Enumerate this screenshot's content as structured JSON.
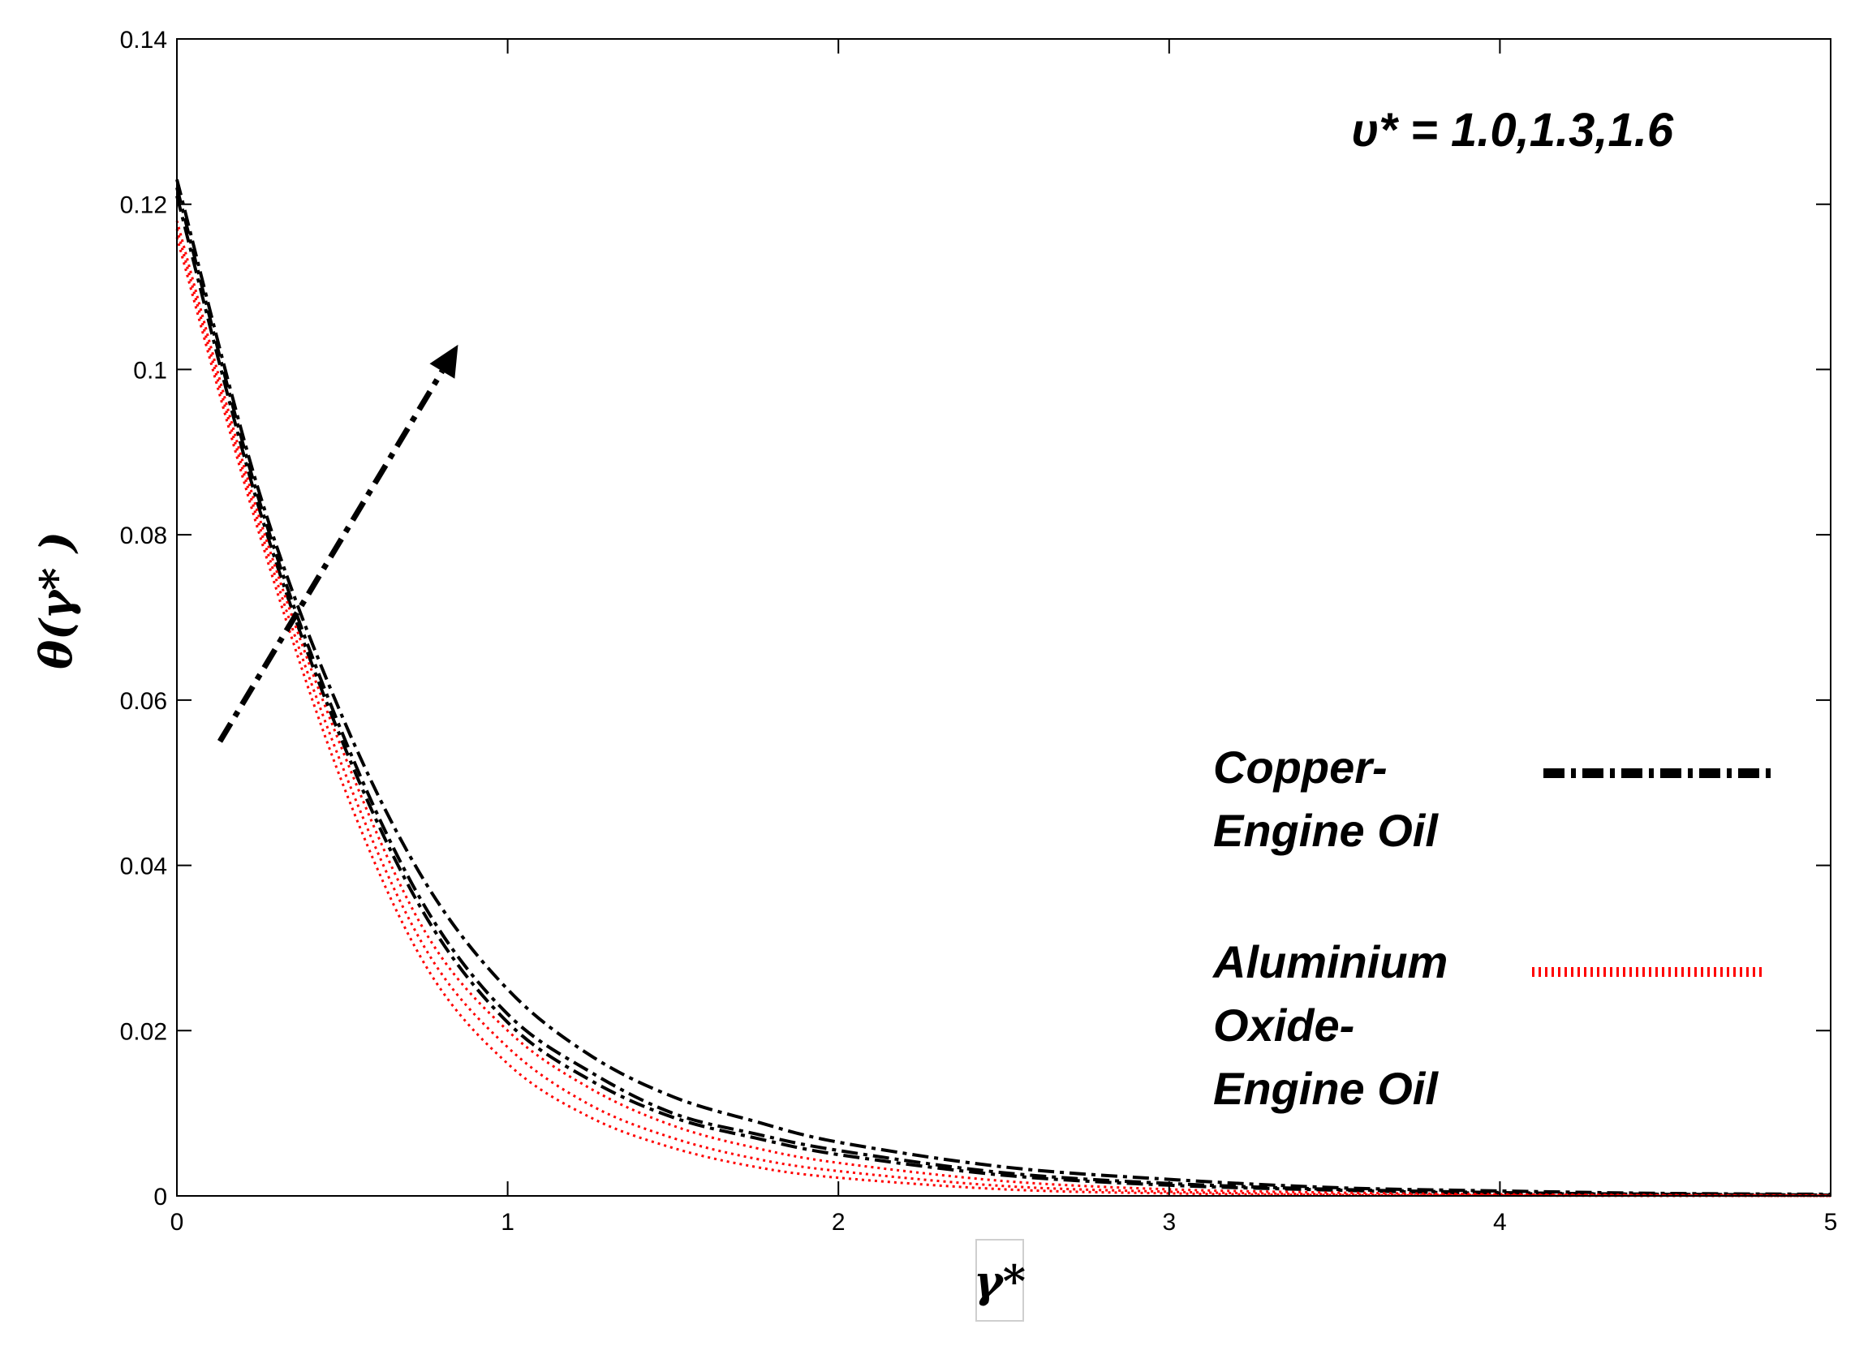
{
  "chart_data": {
    "type": "line",
    "xlabel": "γ*",
    "ylabel": "θ(γ* )",
    "xlim": [
      0,
      5
    ],
    "ylim": [
      0,
      0.14
    ],
    "xticks": [
      "0",
      "1",
      "2",
      "3",
      "4",
      "5"
    ],
    "yticks": [
      "0",
      "0.02",
      "0.04",
      "0.06",
      "0.08",
      "0.1",
      "0.12",
      "0.14"
    ],
    "grid": false,
    "legend_position": "right",
    "annotation": "υ* = 1.0,1.3,1.6",
    "x": [
      0,
      0.25,
      0.5,
      0.75,
      1.0,
      1.25,
      1.5,
      1.75,
      2.0,
      2.5,
      3.0,
      3.5,
      4.0,
      4.5,
      5.0
    ],
    "series": [
      {
        "name": "Copper- Engine Oil",
        "group": 0,
        "color": "#000000",
        "style": "dashdot",
        "values": [
          0.123,
          0.085,
          0.058,
          0.038,
          0.025,
          0.017,
          0.012,
          0.009,
          0.0065,
          0.0035,
          0.002,
          0.001,
          0.0006,
          0.0003,
          0.0002
        ]
      },
      {
        "name": "",
        "group": 0,
        "color": "#000000",
        "style": "dashdot",
        "values": [
          0.122,
          0.084,
          0.056,
          0.035,
          0.022,
          0.015,
          0.01,
          0.0075,
          0.0055,
          0.0028,
          0.0015,
          0.0008,
          0.0004,
          0.0002,
          0.0001
        ]
      },
      {
        "name": "",
        "group": 0,
        "color": "#000000",
        "style": "dashdot",
        "values": [
          0.121,
          0.083,
          0.055,
          0.034,
          0.021,
          0.014,
          0.0095,
          0.007,
          0.005,
          0.0025,
          0.0013,
          0.0007,
          0.0003,
          0.0002,
          0.0001
        ]
      },
      {
        "name": "Aluminium Oxide- Engine Oil",
        "group": 1,
        "color": "#ff0000",
        "style": "dotted",
        "values": [
          0.118,
          0.082,
          0.054,
          0.032,
          0.02,
          0.013,
          0.0085,
          0.0058,
          0.004,
          0.0018,
          0.0008,
          0.0004,
          0.0002,
          0.0001,
          5e-05
        ]
      },
      {
        "name": "",
        "group": 1,
        "color": "#ff0000",
        "style": "dotted",
        "values": [
          0.117,
          0.081,
          0.052,
          0.03,
          0.018,
          0.011,
          0.007,
          0.0045,
          0.003,
          0.0012,
          0.0005,
          0.0002,
          0.0001,
          5e-05,
          0.0
        ]
      },
      {
        "name": "",
        "group": 1,
        "color": "#ff0000",
        "style": "dotted",
        "values": [
          0.116,
          0.08,
          0.05,
          0.028,
          0.016,
          0.0095,
          0.0058,
          0.0035,
          0.0022,
          0.0008,
          0.0003,
          0.0001,
          5e-05,
          0.0,
          0.0
        ]
      }
    ],
    "arrow": {
      "from": [
        0.13,
        0.055
      ],
      "to": [
        0.85,
        0.103
      ]
    }
  }
}
